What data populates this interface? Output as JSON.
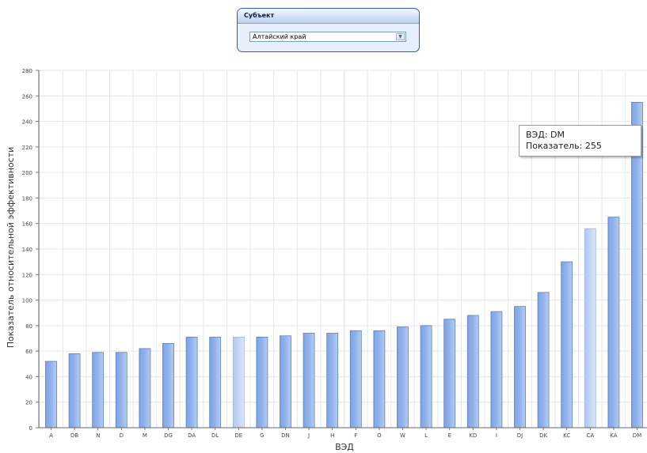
{
  "filter_panel": {
    "title": "Субъект",
    "selected_value": "Алтайский край",
    "arrow_icon": "chevron-down-icon"
  },
  "tooltip": {
    "line1": "ВЭД: DM",
    "line2": "Показатель: 255"
  },
  "colors": {
    "bar": "#92b3ec",
    "bar_highlight": "#c3d6f3",
    "bar_border": "#5c7fc0"
  },
  "chart_data": {
    "type": "bar",
    "title": "",
    "xlabel": "ВЭД",
    "ylabel": "Показатель относительной эффективности",
    "categories": [
      "A",
      "DB",
      "N",
      "D",
      "M",
      "DG",
      "DA",
      "DL",
      "DE",
      "G",
      "DN",
      "J",
      "H",
      "F",
      "O",
      "W",
      "L",
      "E",
      "KD",
      "I",
      "DJ",
      "DK",
      "KC",
      "CA",
      "KA",
      "DM"
    ],
    "values": [
      52,
      58,
      59,
      59,
      62,
      66,
      71,
      71,
      71,
      71,
      72,
      74,
      74,
      76,
      76,
      79,
      80,
      85,
      88,
      91,
      95,
      106,
      130,
      156,
      165,
      255
    ],
    "highlighted": [
      "DE",
      "CA"
    ],
    "ylim": [
      0,
      280
    ],
    "yticks": [
      0,
      20,
      40,
      60,
      80,
      100,
      120,
      140,
      160,
      180,
      200,
      220,
      240,
      260,
      280
    ],
    "grid": true
  }
}
